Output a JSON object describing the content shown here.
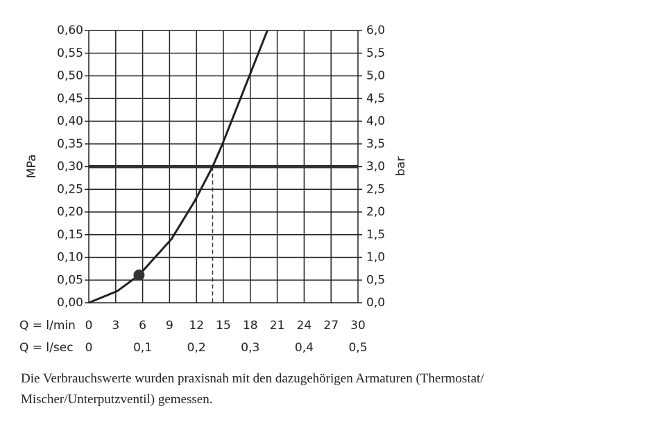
{
  "chart_data": {
    "type": "line",
    "ylabel": "MPa",
    "y2label": "bar",
    "xlabel": "Q = l/min",
    "x2label": "Q = l/sec",
    "xlim": [
      0,
      30
    ],
    "xticks": [
      0,
      3,
      6,
      9,
      12,
      15,
      18,
      21,
      24,
      27,
      30
    ],
    "x2lim": [
      0,
      0.5
    ],
    "x2ticks": [
      0,
      {
        "value": 0.1,
        "label": "0,1"
      },
      {
        "value": 0.2,
        "label": "0,2"
      },
      {
        "value": 0.3,
        "label": "0,3"
      },
      {
        "value": 0.4,
        "label": "0,4"
      },
      {
        "value": 0.5,
        "label": "0,5"
      }
    ],
    "ylim": [
      0,
      0.6
    ],
    "yticks": [
      {
        "value": 0,
        "label": "0,00"
      },
      {
        "value": 0.05,
        "label": "0,05"
      },
      {
        "value": 0.1,
        "label": "0,10"
      },
      {
        "value": 0.15,
        "label": "0,15"
      },
      {
        "value": 0.2,
        "label": "0,20"
      },
      {
        "value": 0.25,
        "label": "0,25"
      },
      {
        "value": 0.3,
        "label": "0,30"
      },
      {
        "value": 0.35,
        "label": "0,35"
      },
      {
        "value": 0.4,
        "label": "0,40"
      },
      {
        "value": 0.45,
        "label": "0,45"
      },
      {
        "value": 0.5,
        "label": "0,50"
      },
      {
        "value": 0.55,
        "label": "0,55"
      },
      {
        "value": 0.6,
        "label": "0,60"
      }
    ],
    "y2lim": [
      0,
      6
    ],
    "y2ticks": [
      {
        "value": 0,
        "label": "0,0"
      },
      {
        "value": 0.5,
        "label": "0,5"
      },
      {
        "value": 1,
        "label": "1,0"
      },
      {
        "value": 1.5,
        "label": "1,5"
      },
      {
        "value": 2,
        "label": "2,0"
      },
      {
        "value": 2.5,
        "label": "2,5"
      },
      {
        "value": 3,
        "label": "3,0"
      },
      {
        "value": 3.5,
        "label": "3,5"
      },
      {
        "value": 4,
        "label": "4,0"
      },
      {
        "value": 4.5,
        "label": "4,5"
      },
      {
        "value": 5,
        "label": "5,0"
      },
      {
        "value": 5.5,
        "label": "5,5"
      },
      {
        "value": 6,
        "label": "6,0"
      }
    ],
    "grid": true,
    "series": [
      {
        "color": "#222222",
        "x": [
          0,
          3.2,
          5.6,
          9.2,
          11.8,
          13.8,
          14.9,
          17.9,
          19.9
        ],
        "values": [
          0,
          0.026,
          0.061,
          0.14,
          0.224,
          0.3,
          0.35,
          0.5,
          0.6
        ]
      }
    ],
    "marker": {
      "x": 5.6,
      "y": 0.061
    },
    "reference_y": 0.3,
    "drop_x": 13.8,
    "note": [
      "Die Verbrauchswerte wurden praxisnah mit den dazugehörigen Armaturen (Thermostat/",
      "Mischer/Unterputzventil) gemessen."
    ]
  }
}
